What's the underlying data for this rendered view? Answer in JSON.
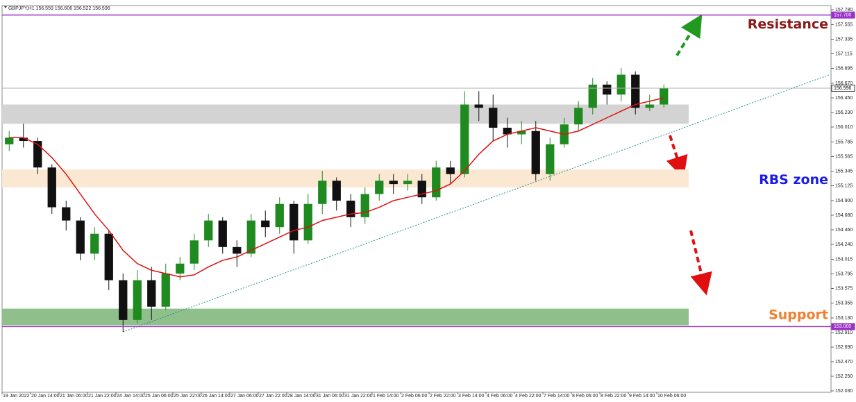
{
  "chart_data": {
    "type": "candlestick",
    "header": "GBPJPY,H1 156.559 156.606 156.522 156.596",
    "categories": [
      "19 Jan 2022",
      null,
      "20 Jan 14:00",
      null,
      "21 Jan 06:00",
      null,
      "21 Jan 22:00",
      null,
      "24 Jan 14:00",
      null,
      "25 Jan 06:00",
      null,
      "25 Jan 22:00",
      null,
      "26 Jan 14:00",
      null,
      "27 Jan 06:00",
      null,
      "27 Jan 22:00",
      null,
      "28 Jan 14:00",
      null,
      "31 Jan 06:00",
      null,
      "31 Jan 22:00",
      null,
      "1 Feb 14:00",
      null,
      "2 Feb 06:00",
      null,
      "2 Feb 22:00",
      null,
      "3 Feb 14:00",
      null,
      "4 Feb 06:00",
      null,
      "4 Feb 22:00",
      null,
      "7 Feb 14:00",
      null,
      "8 Feb 06:00",
      null,
      "8 Feb 22:00",
      null,
      "9 Feb 14:00",
      null,
      "10 Feb 06:00"
    ],
    "open": [
      155.75,
      155.85,
      155.8,
      155.4,
      154.8,
      154.6,
      154.1,
      154.4,
      153.7,
      153.1,
      153.7,
      153.3,
      153.8,
      153.95,
      154.3,
      154.6,
      154.2,
      154.1,
      154.6,
      154.5,
      154.85,
      154.3,
      154.85,
      155.2,
      154.9,
      154.65,
      155.0,
      155.2,
      155.15,
      155.2,
      154.95,
      155.4,
      155.3,
      156.35,
      156.3,
      156.0,
      155.9,
      155.95,
      155.3,
      155.75,
      156.05,
      156.3,
      156.65,
      156.5,
      156.8,
      156.3,
      156.35
    ],
    "high": [
      155.95,
      156.06,
      155.85,
      155.45,
      154.9,
      154.65,
      154.5,
      154.45,
      153.8,
      153.85,
      153.9,
      153.95,
      154.05,
      154.4,
      154.7,
      154.65,
      154.3,
      154.7,
      154.75,
      154.95,
      154.9,
      155.0,
      155.35,
      155.25,
      155.0,
      155.1,
      155.3,
      155.3,
      155.3,
      155.3,
      155.5,
      155.5,
      156.55,
      156.55,
      156.5,
      156.15,
      156.1,
      156.1,
      155.85,
      156.15,
      156.4,
      156.75,
      156.7,
      156.9,
      156.85,
      156.5,
      156.65
    ],
    "low": [
      155.65,
      155.7,
      155.3,
      154.7,
      154.45,
      154.0,
      154.0,
      153.55,
      152.92,
      153.05,
      153.1,
      153.25,
      153.7,
      153.85,
      154.2,
      154.1,
      153.9,
      154.05,
      154.35,
      154.4,
      154.1,
      154.25,
      154.7,
      154.75,
      154.5,
      154.55,
      154.9,
      155.0,
      155.05,
      154.85,
      154.9,
      155.15,
      155.25,
      156.1,
      155.8,
      155.7,
      155.75,
      155.2,
      155.2,
      155.7,
      155.95,
      156.2,
      156.35,
      156.4,
      156.2,
      156.25,
      156.3
    ],
    "close": [
      155.85,
      155.8,
      155.4,
      154.8,
      154.6,
      154.1,
      154.4,
      153.7,
      153.1,
      153.7,
      153.3,
      153.8,
      153.95,
      154.3,
      154.6,
      154.2,
      154.1,
      154.6,
      154.5,
      154.85,
      154.3,
      154.85,
      155.2,
      154.9,
      154.65,
      155.0,
      155.2,
      155.15,
      155.2,
      154.95,
      155.4,
      155.3,
      156.35,
      156.3,
      156.0,
      155.9,
      155.95,
      155.3,
      155.75,
      156.05,
      156.3,
      156.65,
      156.5,
      156.8,
      156.3,
      156.35,
      156.6
    ],
    "up_color": "#1f8a1f",
    "down_color": "#111111",
    "ma": {
      "color": "#e01010",
      "values": [
        155.85,
        155.85,
        155.75,
        155.55,
        155.3,
        155.0,
        154.7,
        154.45,
        154.15,
        153.95,
        153.85,
        153.8,
        153.75,
        153.78,
        153.9,
        154.0,
        154.05,
        154.15,
        154.25,
        154.35,
        154.45,
        154.5,
        154.6,
        154.65,
        154.7,
        154.72,
        154.8,
        154.9,
        154.95,
        155.0,
        155.05,
        155.15,
        155.35,
        155.6,
        155.8,
        155.9,
        155.95,
        156.0,
        155.95,
        155.9,
        155.95,
        156.05,
        156.15,
        156.25,
        156.35,
        156.4,
        156.45
      ]
    },
    "ylim": [
      152.03,
      157.78
    ],
    "yticks": [
      {
        "value": 157.78,
        "label": "157.780"
      },
      {
        "value": 157.555,
        "label": "157.555"
      },
      {
        "value": 157.335,
        "label": "157.335"
      },
      {
        "value": 157.115,
        "label": "157.115"
      },
      {
        "value": 156.895,
        "label": "156.895"
      },
      {
        "value": 156.67,
        "label": "156.670"
      },
      {
        "value": 156.45,
        "label": "156.450"
      },
      {
        "value": 156.23,
        "label": "156.230"
      },
      {
        "value": 156.01,
        "label": "156.010"
      },
      {
        "value": 155.785,
        "label": "155.785"
      },
      {
        "value": 155.565,
        "label": "155.565"
      },
      {
        "value": 155.345,
        "label": "155.345"
      },
      {
        "value": 155.125,
        "label": "155.125"
      },
      {
        "value": 154.9,
        "label": "154.900"
      },
      {
        "value": 154.68,
        "label": "154.680"
      },
      {
        "value": 154.46,
        "label": "154.460"
      },
      {
        "value": 154.24,
        "label": "154.240"
      },
      {
        "value": 154.015,
        "label": "154.015"
      },
      {
        "value": 153.795,
        "label": "153.795"
      },
      {
        "value": 153.575,
        "label": "153.575"
      },
      {
        "value": 153.355,
        "label": "153.355"
      },
      {
        "value": 153.13,
        "label": "153.130"
      },
      {
        "value": 152.91,
        "label": "152.910"
      },
      {
        "value": 152.69,
        "label": "152.690"
      },
      {
        "value": 152.47,
        "label": "152.470"
      },
      {
        "value": 152.25,
        "label": "152.250"
      },
      {
        "value": 152.03,
        "label": "152.030"
      }
    ],
    "levels": [
      {
        "value": 157.7,
        "label": "157.700",
        "color": "#9b30c8"
      },
      {
        "value": 153.0,
        "label": "153.000",
        "color": "#9b30c8"
      },
      {
        "value": 156.596,
        "label": "156.596",
        "color": "#b0b0b0"
      }
    ],
    "zones": [
      {
        "range": [
          156.06,
          156.35
        ],
        "color": "#d3d3d3"
      },
      {
        "range": [
          155.1,
          155.37
        ],
        "color": "#fbe8d3"
      },
      {
        "range": [
          153.02,
          153.27
        ],
        "color": "#8fbf8a"
      }
    ],
    "trendline": {
      "values": [
        152.92,
        156.8
      ],
      "color": "#2a8f8f"
    },
    "annotations": [
      {
        "text": "Resistance",
        "color": "#8b1a1a",
        "value": 157.555
      },
      {
        "text": "RBS zone",
        "color": "#1a1ae6",
        "value": 155.21
      },
      {
        "text": "Support",
        "color": "#f08030",
        "value": 153.17
      }
    ]
  }
}
